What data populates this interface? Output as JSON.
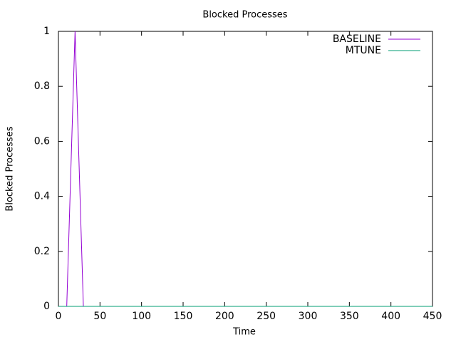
{
  "chart_data": {
    "type": "line",
    "title": "Blocked Processes",
    "x_label": "Time",
    "y_label": "Blocked Processes",
    "x": [
      0,
      10,
      20,
      30,
      40,
      50,
      60,
      70,
      80,
      90,
      100,
      110,
      120,
      130,
      140,
      150,
      160,
      170,
      180,
      190,
      200,
      210,
      220,
      230,
      240,
      250,
      260,
      270,
      280,
      290,
      300,
      310,
      320,
      330,
      340,
      350,
      360,
      370,
      380,
      390,
      400,
      410,
      420,
      430,
      440,
      450
    ],
    "series": [
      {
        "name": "BASELINE",
        "color": "#9400d3",
        "values": [
          0,
          0,
          1,
          0,
          0,
          0,
          0,
          0,
          0,
          0,
          0,
          0,
          0,
          0,
          0,
          0,
          0,
          0,
          0,
          0,
          0,
          0,
          0,
          0,
          0,
          0,
          0,
          0,
          0,
          0,
          0,
          0,
          0,
          0,
          0,
          0,
          0,
          0,
          0,
          0,
          0,
          0,
          0,
          0,
          0,
          0
        ]
      },
      {
        "name": "MTUNE",
        "color": "#009e73",
        "values": [
          0,
          0,
          0,
          0,
          0,
          0,
          0,
          0,
          0,
          0,
          0,
          0,
          0,
          0,
          0,
          0,
          0,
          0,
          0,
          0,
          0,
          0,
          0,
          0,
          0,
          0,
          0,
          0,
          0,
          0,
          0,
          0,
          0,
          0,
          0,
          0,
          0,
          0,
          0,
          0,
          0,
          0,
          0,
          0,
          0,
          0
        ]
      }
    ],
    "xlim": [
      0,
      450
    ],
    "xticks": [
      0,
      50,
      100,
      150,
      200,
      250,
      300,
      350,
      400,
      450
    ],
    "ylim": [
      0,
      1
    ],
    "yticks": [
      0,
      0.2,
      0.4,
      0.6,
      0.8,
      1
    ],
    "grid": false,
    "legend": "top-right"
  }
}
